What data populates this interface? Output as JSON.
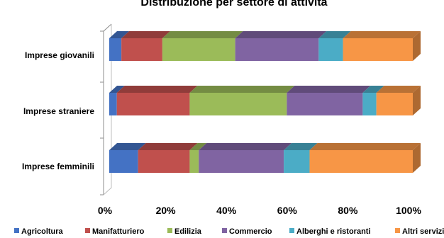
{
  "chart_data": {
    "type": "bar",
    "orientation": "horizontal",
    "stacking": "percent",
    "three_d": true,
    "title": "Distribuzione per settore di attività",
    "categories": [
      "Imprese giovanili",
      "Imprese straniere",
      "Imprese femminili"
    ],
    "x_ticks": [
      "0%",
      "20%",
      "40%",
      "60%",
      "80%",
      "100%"
    ],
    "xlim": [
      0,
      100
    ],
    "grid": false,
    "legend_position": "bottom",
    "series": [
      {
        "name": "Agricoltura",
        "color": "#4472C4",
        "values": [
          4,
          2.5,
          9.5
        ]
      },
      {
        "name": "Manifatturiero",
        "color": "#C0504D",
        "values": [
          13.5,
          24,
          17
        ]
      },
      {
        "name": "Edilizia",
        "color": "#9BBB59",
        "values": [
          24,
          32,
          3
        ]
      },
      {
        "name": "Commercio",
        "color": "#8064A2",
        "values": [
          27.5,
          25,
          28
        ]
      },
      {
        "name": "Alberghi e ristoranti",
        "color": "#4BACC6",
        "values": [
          8,
          4.5,
          8.5
        ]
      },
      {
        "name": "Altri servizi",
        "color": "#F79646",
        "values": [
          23,
          12,
          34
        ]
      }
    ]
  }
}
